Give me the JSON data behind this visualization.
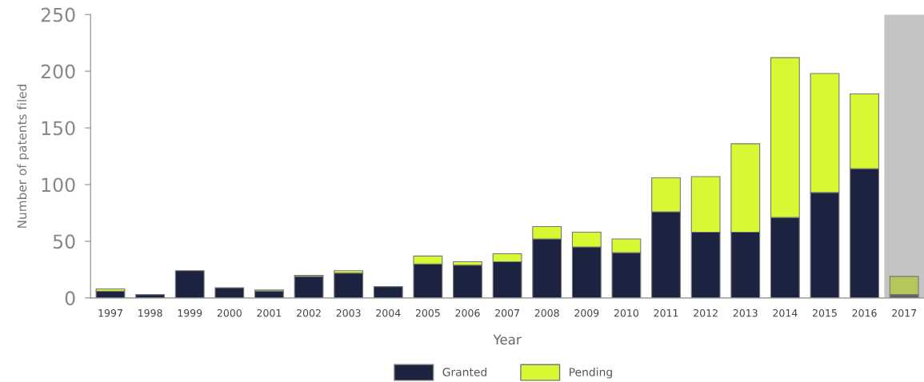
{
  "chart_data": {
    "type": "bar",
    "stacked": true,
    "xlabel": "Year",
    "ylabel": "Number of patents filed",
    "categories": [
      "1997",
      "1998",
      "1999",
      "2000",
      "2001",
      "2002",
      "2003",
      "2004",
      "2005",
      "2006",
      "2007",
      "2008",
      "2009",
      "2010",
      "2011",
      "2012",
      "2013",
      "2014",
      "2015",
      "2016",
      "2017"
    ],
    "series": [
      {
        "name": "Granted",
        "color": "#1c2340",
        "colors": [
          "#1c2340",
          "#1c2340",
          "#1c2340",
          "#1c2340",
          "#1c2340",
          "#1c2340",
          "#1c2340",
          "#1c2340",
          "#1c2340",
          "#1c2340",
          "#1c2340",
          "#1c2340",
          "#1c2340",
          "#1c2340",
          "#1c2340",
          "#1c2340",
          "#1c2340",
          "#1c2340",
          "#1c2340",
          "#1c2340",
          "#5a5e66"
        ],
        "values": [
          6,
          3,
          24,
          9,
          6,
          19,
          22,
          10,
          30,
          29,
          32,
          52,
          45,
          40,
          76,
          58,
          58,
          71,
          93,
          114,
          3
        ]
      },
      {
        "name": "Pending",
        "color": "#d7f933",
        "colors": [
          "#d7f933",
          "#d7f933",
          "#d7f933",
          "#d7f933",
          "#d7f933",
          "#d7f933",
          "#d7f933",
          "#d7f933",
          "#d7f933",
          "#d7f933",
          "#d7f933",
          "#d7f933",
          "#d7f933",
          "#d7f933",
          "#d7f933",
          "#d7f933",
          "#d7f933",
          "#d7f933",
          "#d7f933",
          "#d7f933",
          "#b7c65a"
        ],
        "values": [
          2,
          0,
          0,
          0,
          1,
          1,
          2,
          0,
          7,
          3,
          7,
          11,
          13,
          12,
          30,
          49,
          78,
          141,
          105,
          66,
          16
        ]
      }
    ],
    "bands": [
      {
        "axis": "x",
        "from": "2017",
        "to": "2017",
        "color": "#c4c4c4"
      }
    ],
    "ylim": [
      0,
      250
    ],
    "yticks": [
      0,
      50,
      100,
      150,
      200,
      250
    ],
    "grid": false,
    "legend": "bottom"
  }
}
